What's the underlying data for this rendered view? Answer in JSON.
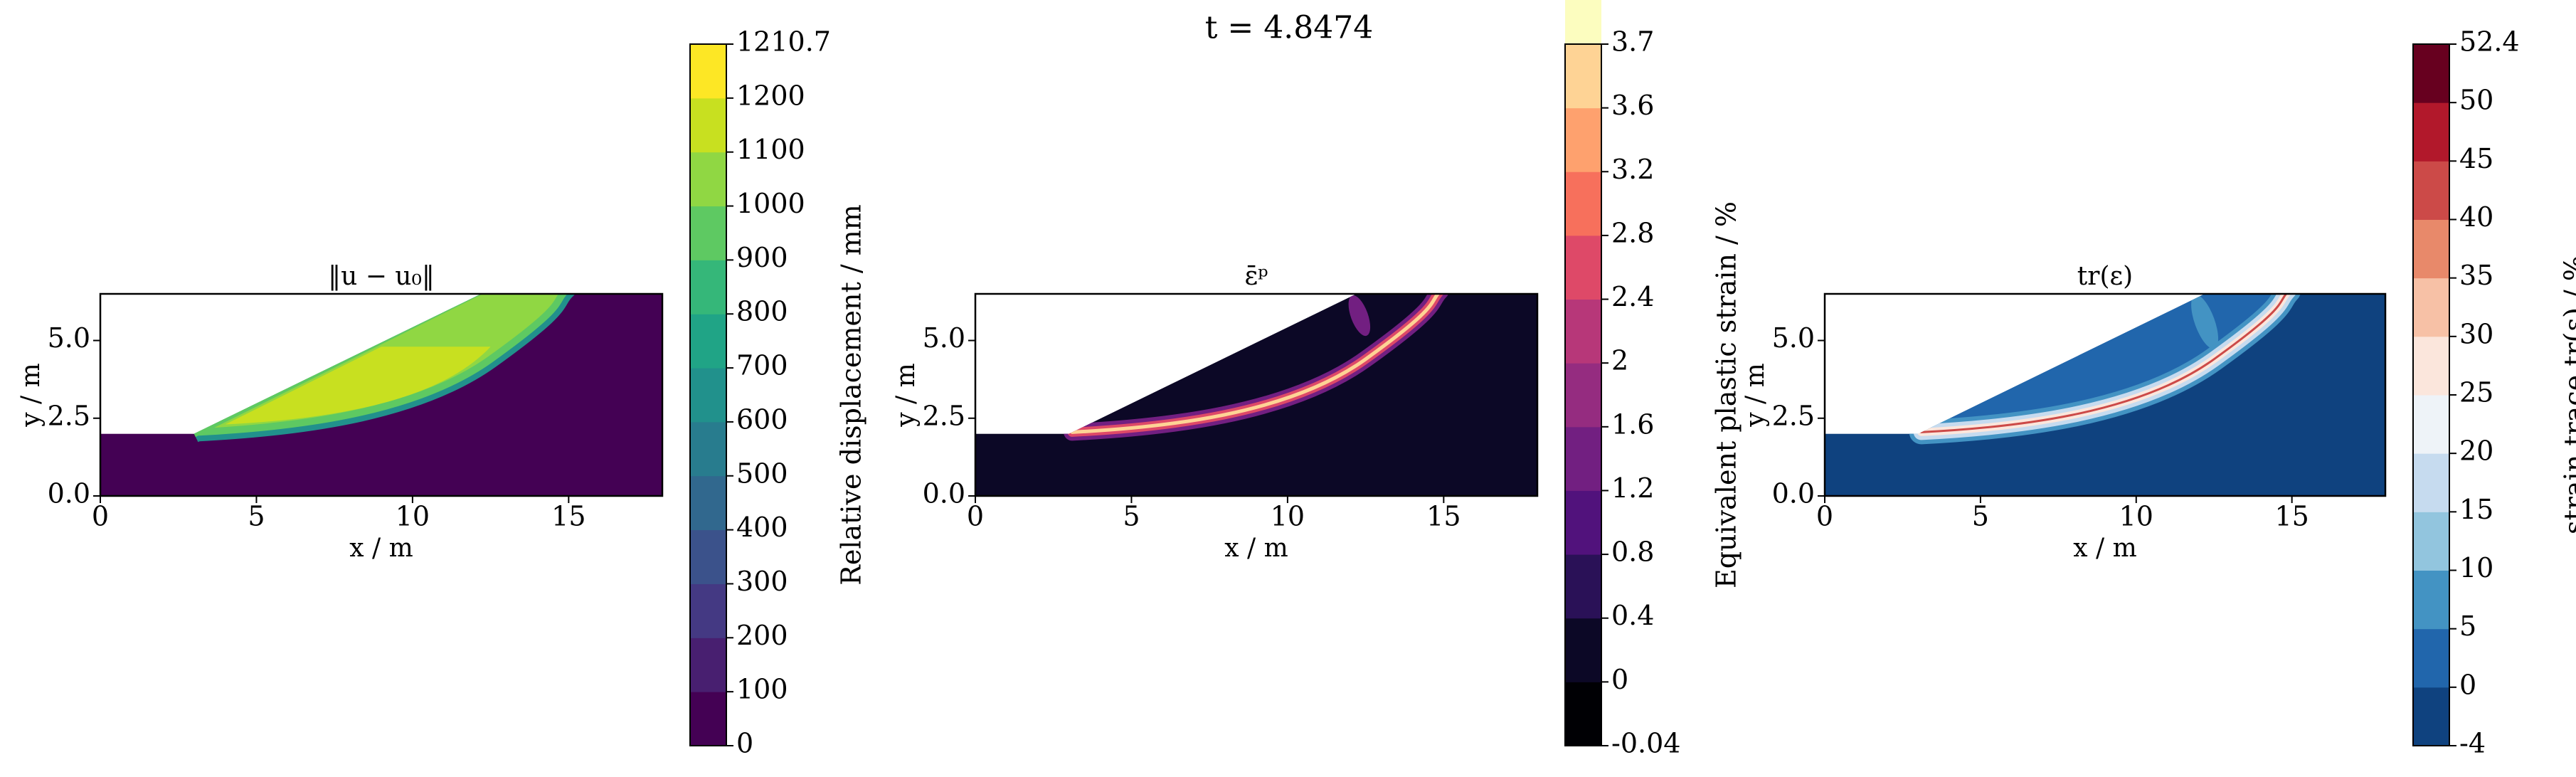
{
  "title": "t = 4.8474",
  "chart_data": [
    {
      "type": "contour",
      "title": "‖u − u₀‖",
      "xlabel": "x / m",
      "ylabel": "y / m",
      "xlim": [
        0,
        18
      ],
      "ylim": [
        0,
        6.5
      ],
      "xticks": [
        0,
        5,
        10,
        15
      ],
      "yticks": [
        {
          "value": 0,
          "label": "0.0"
        },
        2.5,
        {
          "value": 5,
          "label": "5.0"
        }
      ],
      "colorbar": {
        "label": "Relative displacement / mm",
        "spacing": "uniform",
        "ticks": [
          0,
          100,
          200,
          300,
          400,
          500,
          600,
          700,
          800,
          900,
          1000,
          1100,
          1200,
          1210.7
        ],
        "colors": [
          "#440154",
          "#481f70",
          "#443983",
          "#3b528b",
          "#31688e",
          "#287c8e",
          "#21918c",
          "#20a486",
          "#35b779",
          "#5ec962",
          "#90d743",
          "#c8e020",
          "#fde725"
        ]
      }
    },
    {
      "type": "contour",
      "title": "ε̄ᵖ",
      "xlabel": "x / m",
      "ylabel": "y / m",
      "xlim": [
        0,
        18
      ],
      "ylim": [
        0,
        6.5
      ],
      "xticks": [
        0,
        5,
        10,
        15
      ],
      "yticks": [
        {
          "value": 0,
          "label": "0.0"
        },
        2.5,
        {
          "value": 5,
          "label": "5.0"
        }
      ],
      "colorbar": {
        "label": "Equivalent plastic strain / %",
        "spacing": "uniform",
        "ticks": [
          -0.04,
          0,
          0.4,
          0.8,
          1.2,
          1.6,
          2,
          2.4,
          2.8,
          3.2,
          3.6,
          3.7
        ],
        "colors": [
          "#000004",
          "#0c0826",
          "#2a1157",
          "#51127c",
          "#721f81",
          "#952c80",
          "#b73779",
          "#de4968",
          "#f7705c",
          "#fea16e",
          "#fed395",
          "#fcfdbf"
        ]
      }
    },
    {
      "type": "contour",
      "title": "tr(ε)",
      "xlabel": "x / m",
      "ylabel": "y / m",
      "xlim": [
        0,
        18
      ],
      "ylim": [
        0,
        6.5
      ],
      "xticks": [
        0,
        5,
        10,
        15
      ],
      "yticks": [
        {
          "value": 0,
          "label": "0.0"
        },
        2.5,
        {
          "value": 5,
          "label": "5.0"
        }
      ],
      "colorbar": {
        "label": "strain trace tr(ε) / %",
        "spacing": "uniform",
        "ticks": [
          -4,
          0,
          5,
          10,
          15,
          20,
          25,
          30,
          35,
          40,
          45,
          50,
          52.4
        ],
        "colors": [
          "#0f427f",
          "#2166ac",
          "#4393c3",
          "#92c5de",
          "#c6dbef",
          "#eef3f8",
          "#fbe6dc",
          "#f7c1a6",
          "#e8896a",
          "#cc4a48",
          "#b2182b",
          "#67001f"
        ]
      }
    }
  ]
}
